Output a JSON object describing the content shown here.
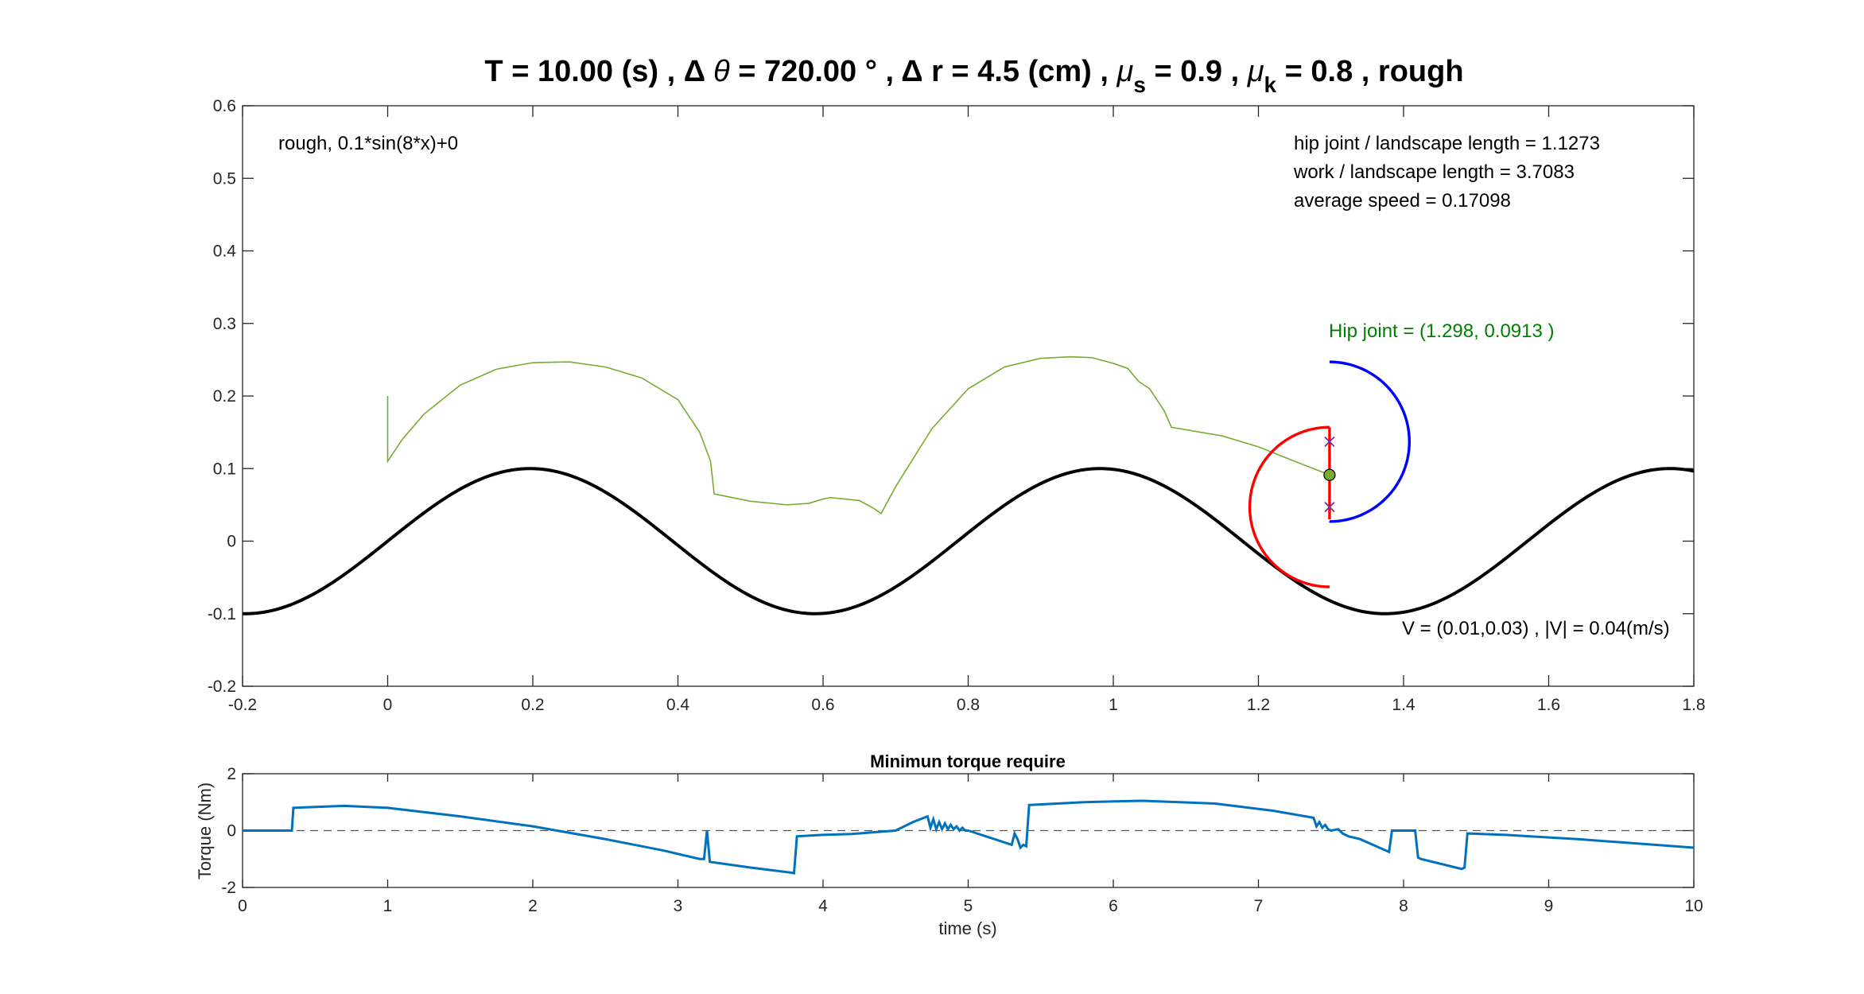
{
  "chart_data": [
    {
      "type": "line",
      "title_parts": {
        "a": "T = 10.00 (s) , ",
        "delta1": "Δ",
        "theta": "θ",
        "b": " = 720.00 ° , ",
        "delta2": "Δ",
        "c": " r = 4.5 (cm) , ",
        "mu1": "μ",
        "s": "s",
        "d": " = 0.9 , ",
        "mu2": "μ",
        "k": "k",
        "e": " = 0.8 , rough"
      },
      "xlim": [
        -0.2,
        1.8
      ],
      "ylim": [
        -0.2,
        0.6
      ],
      "xticks": [
        "-0.2",
        "0",
        "0.2",
        "0.4",
        "0.6",
        "0.8",
        "1",
        "1.2",
        "1.4",
        "1.6",
        "1.8"
      ],
      "yticks": [
        "-0.2",
        "-0.1",
        "0",
        "0.1",
        "0.2",
        "0.3",
        "0.4",
        "0.5",
        "0.6"
      ],
      "annotations": {
        "landscape": "rough, 0.1*sin(8*x)+0",
        "hip_ratio": "hip joint / landscape length  = 1.1273",
        "work_ratio": "work / landscape length = 3.7083",
        "avg_speed": "average speed = 0.17098",
        "hip_joint": "Hip joint = (1.298, 0.0913 )",
        "velocity": "V = (0.01,0.03) , |V| = 0.04(m/s)"
      },
      "terrain": {
        "amplitude": 0.1,
        "frequency": 8,
        "offset": 0,
        "x_range": [
          -0.2,
          1.8
        ],
        "color": "#000000"
      },
      "hip_trajectory": {
        "color": "#77AC30",
        "x": [
          0,
          0,
          0.02,
          0.05,
          0.1,
          0.15,
          0.2,
          0.25,
          0.3,
          0.35,
          0.4,
          0.43,
          0.445,
          0.45,
          0.5,
          0.55,
          0.58,
          0.6,
          0.61,
          0.63,
          0.65,
          0.67,
          0.68,
          0.7,
          0.75,
          0.8,
          0.85,
          0.9,
          0.94,
          0.97,
          1.0,
          1.02,
          1.035,
          1.05,
          1.07,
          1.08,
          1.15,
          1.2,
          1.25,
          1.298
        ],
        "y": [
          0.2,
          0.11,
          0.14,
          0.175,
          0.215,
          0.237,
          0.246,
          0.247,
          0.24,
          0.225,
          0.195,
          0.15,
          0.11,
          0.065,
          0.055,
          0.05,
          0.052,
          0.058,
          0.06,
          0.058,
          0.056,
          0.045,
          0.038,
          0.075,
          0.155,
          0.21,
          0.24,
          0.252,
          0.254,
          0.253,
          0.245,
          0.238,
          0.22,
          0.21,
          0.18,
          0.157,
          0.145,
          0.13,
          0.11,
          0.0913
        ]
      },
      "robot": {
        "hip": [
          1.298,
          0.0913
        ],
        "red_color": "#FF0000",
        "blue_color": "#0000FF",
        "red_line_x": 1.298,
        "red_line_y": [
          0.03,
          0.157
        ],
        "red_arc_center": [
          1.298,
          0.047
        ],
        "red_arc_radius": 0.11,
        "blue_line_y": [
          0.027,
          0.247
        ],
        "blue_arc_center": [
          1.298,
          0.137
        ],
        "blue_arc_radius": 0.11,
        "markers": [
          [
            1.298,
            0.137
          ],
          [
            1.298,
            0.047
          ]
        ],
        "marker_color": "#7E2F8E"
      }
    },
    {
      "type": "line",
      "title": "Minimun torque require",
      "xlabel": "time (s)",
      "ylabel": "Torque (Nm)",
      "xlim": [
        0,
        10
      ],
      "ylim": [
        -2,
        2
      ],
      "xticks": [
        "0",
        "1",
        "2",
        "3",
        "4",
        "5",
        "6",
        "7",
        "8",
        "9",
        "10"
      ],
      "yticks": [
        "-2",
        "0",
        "2"
      ],
      "series": [
        {
          "color": "#0072BD",
          "x": [
            0,
            0.34,
            0.35,
            0.7,
            1.0,
            1.5,
            2.0,
            2.5,
            2.9,
            3.15,
            3.18,
            3.2,
            3.22,
            3.5,
            3.78,
            3.8,
            3.82,
            4.0,
            4.2,
            4.5,
            4.62,
            4.72,
            4.74,
            4.76,
            4.78,
            4.8,
            4.82,
            4.84,
            4.86,
            4.88,
            4.9,
            4.92,
            4.94,
            4.96,
            4.98,
            5.0,
            5.3,
            5.32,
            5.34,
            5.36,
            5.38,
            5.4,
            5.42,
            5.8,
            6.2,
            6.7,
            7.1,
            7.38,
            7.4,
            7.42,
            7.44,
            7.46,
            7.48,
            7.5,
            7.55,
            7.58,
            7.6,
            7.62,
            7.7,
            7.9,
            7.92,
            7.94,
            8.08,
            8.1,
            8.12,
            8.4,
            8.42,
            8.44,
            8.7,
            9.2,
            10
          ],
          "y": [
            0,
            0,
            0.8,
            0.87,
            0.8,
            0.5,
            0.15,
            -0.3,
            -0.7,
            -1.0,
            -1.0,
            0,
            -1.1,
            -1.3,
            -1.48,
            -1.5,
            -0.2,
            -0.15,
            -0.12,
            0,
            0.3,
            0.5,
            0.1,
            0.4,
            0.05,
            0.3,
            0.05,
            0.25,
            0.05,
            0.2,
            0.05,
            0.15,
            0,
            0.1,
            0,
            0,
            -0.5,
            -0.1,
            -0.3,
            -0.6,
            -0.5,
            -0.55,
            0.9,
            1.0,
            1.05,
            0.95,
            0.7,
            0.45,
            0.15,
            0.3,
            0.1,
            0.2,
            0.05,
            0,
            0.05,
            -0.1,
            -0.15,
            -0.2,
            -0.3,
            -0.75,
            0,
            0,
            0,
            -0.95,
            -1.0,
            -1.35,
            -1.3,
            -0.1,
            -0.15,
            -0.3,
            -0.6
          ],
          "lim_label": ""
        }
      ],
      "zero_line_color": "#555555"
    }
  ]
}
